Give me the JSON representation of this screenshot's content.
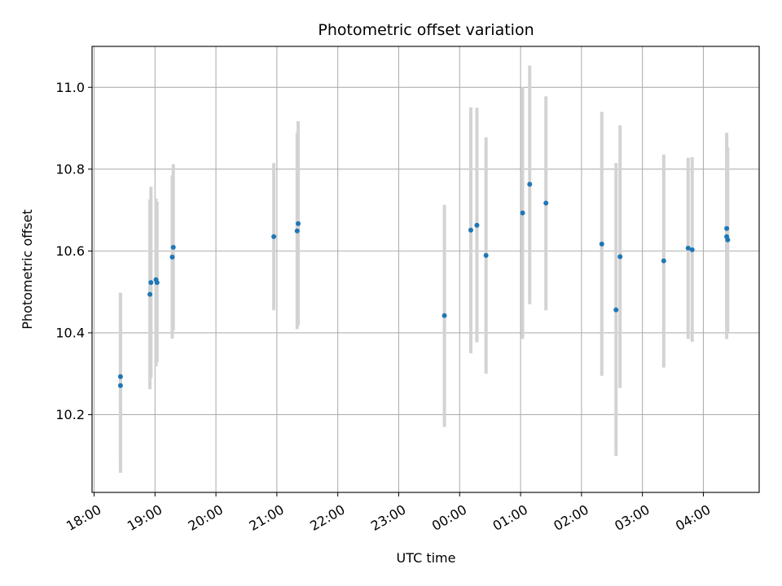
{
  "chart_data": {
    "type": "scatter",
    "title": "Photometric offset variation",
    "xlabel": "UTC time",
    "ylabel": "Photometric offset",
    "grid": true,
    "x_axis": "time",
    "xlim": [
      "17:58",
      "04:55"
    ],
    "ylim": [
      10.01,
      11.1
    ],
    "x_ticks": [
      "18:00",
      "19:00",
      "20:00",
      "21:00",
      "22:00",
      "23:00",
      "00:00",
      "01:00",
      "02:00",
      "03:00",
      "04:00"
    ],
    "y_ticks": [
      "10.2",
      "10.4",
      "10.6",
      "10.8",
      "11.0"
    ],
    "marker_color": "#1f77b4",
    "errorbar_color": "#d3d3d3",
    "points": [
      {
        "x": "18:26",
        "y": 10.293,
        "ylow": 10.087,
        "yhigh": 10.498
      },
      {
        "x": "18:26",
        "y": 10.271,
        "ylow": 10.058,
        "yhigh": 10.495
      },
      {
        "x": "18:55",
        "y": 10.494,
        "ylow": 10.262,
        "yhigh": 10.726
      },
      {
        "x": "18:56",
        "y": 10.523,
        "ylow": 10.29,
        "yhigh": 10.757
      },
      {
        "x": "19:01",
        "y": 10.53,
        "ylow": 10.318,
        "yhigh": 10.728
      },
      {
        "x": "19:02",
        "y": 10.523,
        "ylow": 10.328,
        "yhigh": 10.72
      },
      {
        "x": "19:17",
        "y": 10.585,
        "ylow": 10.386,
        "yhigh": 10.785
      },
      {
        "x": "19:18",
        "y": 10.609,
        "ylow": 10.407,
        "yhigh": 10.812
      },
      {
        "x": "20:57",
        "y": 10.635,
        "ylow": 10.455,
        "yhigh": 10.815
      },
      {
        "x": "21:20",
        "y": 10.649,
        "ylow": 10.409,
        "yhigh": 10.889
      },
      {
        "x": "21:21",
        "y": 10.667,
        "ylow": 10.418,
        "yhigh": 10.917
      },
      {
        "x": "23:45",
        "y": 10.442,
        "ylow": 10.17,
        "yhigh": 10.713
      },
      {
        "x": "00:11",
        "y": 10.651,
        "ylow": 10.35,
        "yhigh": 10.951
      },
      {
        "x": "00:17",
        "y": 10.663,
        "ylow": 10.377,
        "yhigh": 10.95
      },
      {
        "x": "00:26",
        "y": 10.589,
        "ylow": 10.3,
        "yhigh": 10.878
      },
      {
        "x": "01:02",
        "y": 10.693,
        "ylow": 10.385,
        "yhigh": 11.0
      },
      {
        "x": "01:09",
        "y": 10.763,
        "ylow": 10.47,
        "yhigh": 11.053
      },
      {
        "x": "01:25",
        "y": 10.717,
        "ylow": 10.455,
        "yhigh": 10.978
      },
      {
        "x": "02:20",
        "y": 10.617,
        "ylow": 10.295,
        "yhigh": 10.94
      },
      {
        "x": "02:34",
        "y": 10.456,
        "ylow": 10.099,
        "yhigh": 10.815
      },
      {
        "x": "02:38",
        "y": 10.586,
        "ylow": 10.265,
        "yhigh": 10.907
      },
      {
        "x": "03:21",
        "y": 10.576,
        "ylow": 10.315,
        "yhigh": 10.836
      },
      {
        "x": "03:45",
        "y": 10.607,
        "ylow": 10.385,
        "yhigh": 10.828
      },
      {
        "x": "03:49",
        "y": 10.603,
        "ylow": 10.378,
        "yhigh": 10.829
      },
      {
        "x": "04:23",
        "y": 10.635,
        "ylow": 10.385,
        "yhigh": 10.884
      },
      {
        "x": "04:23",
        "y": 10.655,
        "ylow": 10.42,
        "yhigh": 10.889
      },
      {
        "x": "04:24",
        "y": 10.627,
        "ylow": 10.402,
        "yhigh": 10.853
      }
    ]
  }
}
